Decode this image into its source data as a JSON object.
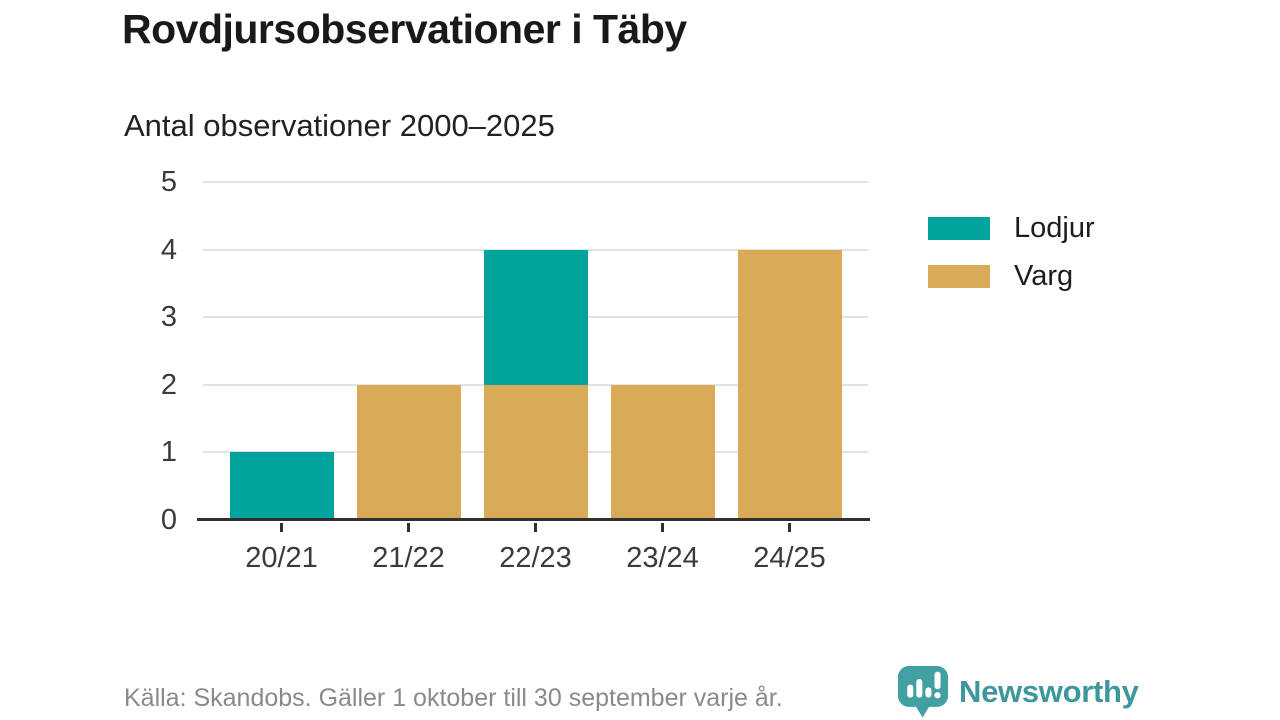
{
  "header": {
    "title": "Rovdjursobservationer i Täby",
    "subtitle": "Antal observationer 2000–2025"
  },
  "chart_data": {
    "type": "bar",
    "stacked": true,
    "title": "Rovdjursobservationer i Täby",
    "subtitle": "Antal observationer 2000–2025",
    "categories": [
      "20/21",
      "21/22",
      "22/23",
      "23/24",
      "24/25"
    ],
    "series": [
      {
        "name": "Varg",
        "color": "#d9ab58",
        "values": [
          0,
          2,
          2,
          2,
          4
        ]
      },
      {
        "name": "Lodjur",
        "color": "#00a49c",
        "values": [
          1,
          0,
          2,
          0,
          0
        ]
      }
    ],
    "totals": [
      1,
      2,
      4,
      2,
      4
    ],
    "xlabel": "",
    "ylabel": "",
    "ylim": [
      0,
      5
    ],
    "yticks": [
      0,
      1,
      2,
      3,
      4,
      5
    ],
    "grid": true,
    "legend_position": "right"
  },
  "legend": {
    "items": [
      {
        "label": "Lodjur",
        "color": "#00a49c"
      },
      {
        "label": "Varg",
        "color": "#d9ab58"
      }
    ]
  },
  "footer": {
    "source": "Källa: Skandobs. Gäller 1 oktober till 30 september varje år.",
    "brand": "Newsworthy"
  },
  "colors": {
    "lodjur": "#00a49c",
    "varg": "#d9ab58",
    "gridline": "#e2e2e2",
    "axis": "#2f2f2f",
    "brand_teal": "#3e979d"
  }
}
